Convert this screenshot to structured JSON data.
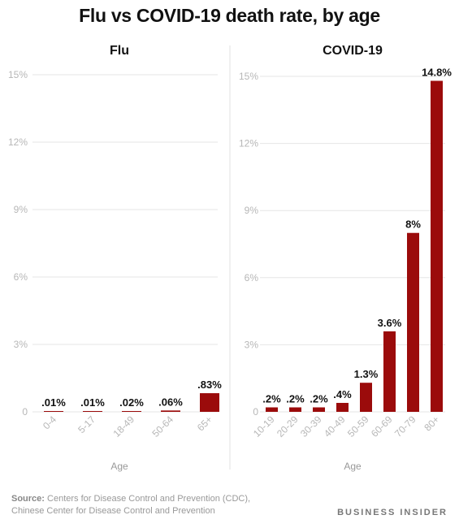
{
  "title": "Flu vs COVID-19 death rate, by age",
  "source_label": "Source:",
  "source_line1": "Centers for Disease Control and Prevention (CDC),",
  "source_line2": "Chinese Center for Disease Control and Prevention",
  "brand": "BUSINESS INSIDER",
  "colors": {
    "bar": "#9b0b0b",
    "grid": "#e6e6e6",
    "divider": "#e0e0e0"
  },
  "chart_data": [
    {
      "type": "bar",
      "title": "Flu",
      "xlabel": "Age",
      "ylabel": "",
      "ylim": [
        0,
        15
      ],
      "yticks": [
        "0",
        "3%",
        "6%",
        "9%",
        "12%",
        "15%"
      ],
      "grid": true,
      "categories": [
        "0-4",
        "5-17",
        "18-49",
        "50-64",
        "65+"
      ],
      "values": [
        0.01,
        0.01,
        0.02,
        0.06,
        0.83
      ],
      "data_labels": [
        ".01%",
        ".01%",
        ".02%",
        ".06%",
        ".83%"
      ]
    },
    {
      "type": "bar",
      "title": "COVID-19",
      "xlabel": "Age",
      "ylabel": "",
      "ylim": [
        0,
        15
      ],
      "yticks": [
        "0",
        "3%",
        "6%",
        "9%",
        "12%",
        "15%"
      ],
      "grid": true,
      "categories": [
        "10-19",
        "20-29",
        "30-39",
        "40-49",
        "50-59",
        "60-69",
        "70-79",
        "80+"
      ],
      "values": [
        0.2,
        0.2,
        0.2,
        0.4,
        1.3,
        3.6,
        8,
        14.8
      ],
      "data_labels": [
        ".2%",
        ".2%",
        ".2%",
        ".4%",
        "1.3%",
        "3.6%",
        "8%",
        "14.8%"
      ]
    }
  ]
}
